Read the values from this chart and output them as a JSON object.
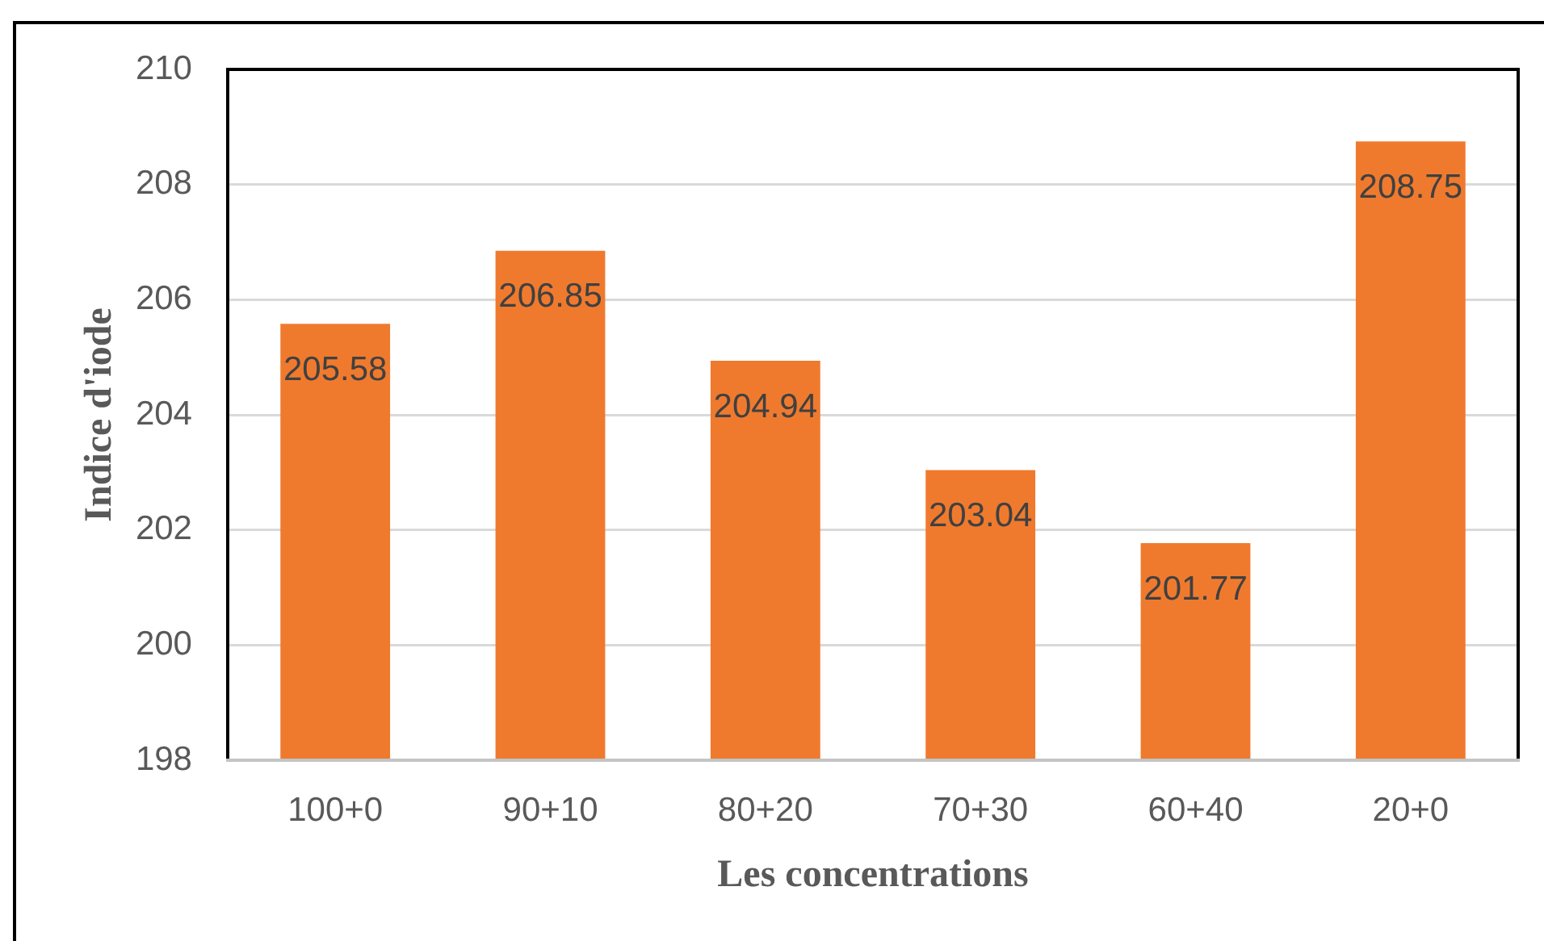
{
  "chart_data": {
    "type": "bar",
    "xlabel": "Les concentrations",
    "ylabel": "Indice d'iode",
    "categories": [
      "100+0",
      "90+10",
      "80+20",
      "70+30",
      "60+40",
      "20+0"
    ],
    "values": [
      205.58,
      206.85,
      204.94,
      203.04,
      201.77,
      208.75
    ],
    "color": "#ef7a2e",
    "ylim": [
      198,
      210
    ],
    "yticks": [
      198,
      200,
      202,
      204,
      206,
      208,
      210
    ],
    "grid": "y",
    "data_labels": true,
    "legend": false
  }
}
